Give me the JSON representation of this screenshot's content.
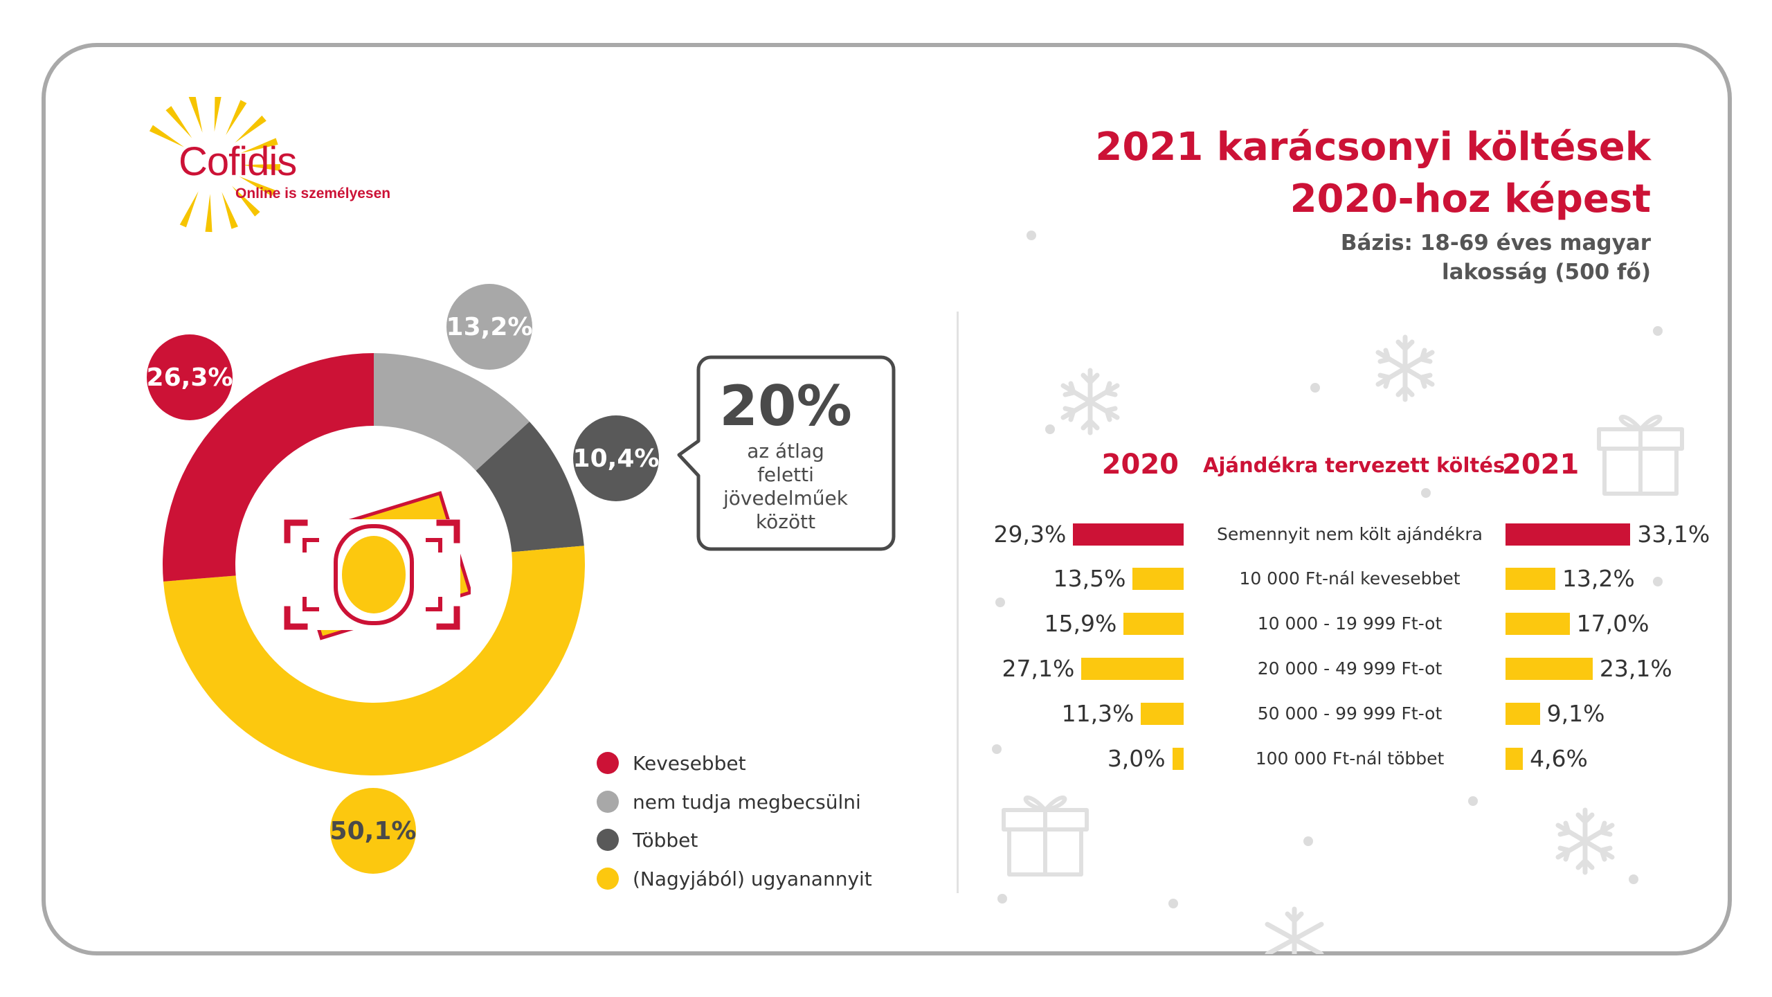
{
  "brand": {
    "name": "Cofidis",
    "tagline": "Online is személyesen"
  },
  "title": {
    "line1": "2021 karácsonyi költések",
    "line2": "2020-hoz képest"
  },
  "subtitle": {
    "line1": "Bázis: 18-69 éves magyar",
    "line2": "lakosság (500 fő)"
  },
  "callout": {
    "percent": "20%",
    "lines": [
      "az átlag",
      "feletti",
      "jövedelműek",
      "között"
    ]
  },
  "colors": {
    "red": "#cc1236",
    "light_gray": "#a8a8a8",
    "dark_gray": "#595959",
    "yellow": "#fcc80f",
    "frame": "#a9a9a9"
  },
  "icons": [
    "money-bill-icon",
    "snowflake-icon",
    "gift-icon",
    "sun-rays-icon"
  ],
  "bars_header": {
    "left_year": "2020",
    "center": "Ajándékra tervezett költés",
    "right_year": "2021"
  },
  "chart_data": [
    {
      "type": "pie",
      "variant": "donut",
      "slices": [
        {
          "label": "Kevesebbet",
          "value": 26.3,
          "display": "26,3%",
          "color": "#cc1236"
        },
        {
          "label": "nem tudja megbecsülni",
          "value": 13.2,
          "display": "13,2%",
          "color": "#a8a8a8"
        },
        {
          "label": "Többet",
          "value": 10.4,
          "display": "10,4%",
          "color": "#595959"
        },
        {
          "label": "(Nagyjából) ugyanannyit",
          "value": 50.1,
          "display": "50,1%",
          "color": "#fcc80f"
        }
      ],
      "legend_position": "bottom-right"
    },
    {
      "type": "bar",
      "orientation": "horizontal",
      "categories": [
        "Semennyit nem költ ajándékra",
        "10 000 Ft-nál kevesebbet",
        "10 000 - 19 999 Ft-ot",
        "20 000 - 49 999 Ft-ot",
        "50 000 - 99 999 Ft-ot",
        "100 000 Ft-nál többet"
      ],
      "series": [
        {
          "name": "2020",
          "values": [
            29.3,
            13.5,
            15.9,
            27.1,
            11.3,
            3.0
          ],
          "display": [
            "29,3%",
            "13,5%",
            "15,9%",
            "27,1%",
            "11,3%",
            "3,0%"
          ]
        },
        {
          "name": "2021",
          "values": [
            33.1,
            13.2,
            17.0,
            23.1,
            9.1,
            4.6
          ],
          "display": [
            "33,1%",
            "13,2%",
            "17,0%",
            "23,1%",
            "9,1%",
            "4,6%"
          ]
        }
      ]
    }
  ]
}
